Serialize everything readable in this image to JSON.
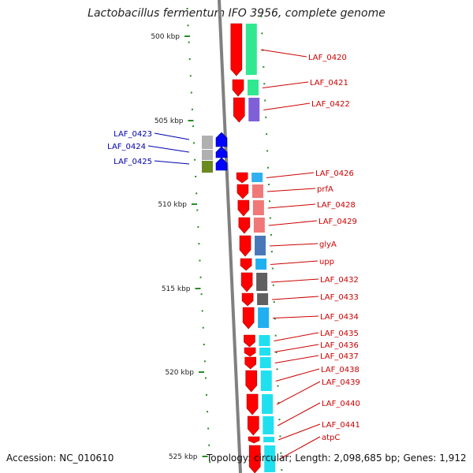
{
  "title": "Lactobacillus fermentum IFO 3956, complete genome",
  "footer": {
    "accession": "Accession: NC_010610",
    "topology": "Topology: circular; Length: 2,098,685 bp; Genes: 1,912"
  },
  "scale_labels": [
    "500 kbp",
    "505 kbp",
    "510 kbp",
    "515 kbp",
    "520 kbp",
    "525 kbp"
  ],
  "colors": {
    "forward_arrow": "#ff0000",
    "reverse_arrow": "#0000ff",
    "backbone": "#808080",
    "tick": "#2a8a2a",
    "label_forward": "#cc0000",
    "label_reverse": "#0000aa"
  },
  "forward_genes": [
    {
      "label": "LAF_0420",
      "bar_color": "#30e890"
    },
    {
      "label": "LAF_0421",
      "bar_color": "#30e890"
    },
    {
      "label": "LAF_0422",
      "bar_color": "#8060d8"
    },
    {
      "label": "LAF_0426",
      "bar_color": "#30b0f0"
    },
    {
      "label": "prfA",
      "bar_color": "#f07878"
    },
    {
      "label": "LAF_0428",
      "bar_color": "#f07878"
    },
    {
      "label": "LAF_0429",
      "bar_color": "#f07878"
    },
    {
      "label": "glyA",
      "bar_color": "#4878b8"
    },
    {
      "label": "upp",
      "bar_color": "#20b0f0"
    },
    {
      "label": "LAF_0432",
      "bar_color": "#606060"
    },
    {
      "label": "LAF_0433",
      "bar_color": "#606060"
    },
    {
      "label": "LAF_0434",
      "bar_color": "#20b0f0"
    },
    {
      "label": "LAF_0435",
      "bar_color": "#20e0f0"
    },
    {
      "label": "LAF_0436",
      "bar_color": "#20e0f0"
    },
    {
      "label": "LAF_0437",
      "bar_color": "#20e0f0"
    },
    {
      "label": "LAF_0438",
      "bar_color": "#20e0f0"
    },
    {
      "label": "LAF_0439",
      "bar_color": "#20e0f0"
    },
    {
      "label": "LAF_0440",
      "bar_color": "#20e0f0"
    },
    {
      "label": "LAF_0441",
      "bar_color": "#20e0f0"
    },
    {
      "label": "atpC",
      "bar_color": "#20e0f0"
    }
  ],
  "reverse_genes": [
    {
      "label": "LAF_0423",
      "bar_color": "#b0b0b0"
    },
    {
      "label": "LAF_0424",
      "bar_color": "#b0b0b0"
    },
    {
      "label": "LAF_0425",
      "bar_color": "#6a8a20"
    }
  ]
}
